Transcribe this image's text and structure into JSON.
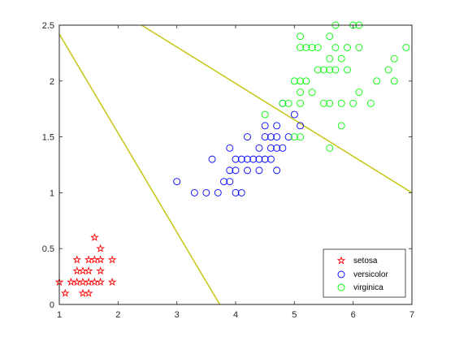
{
  "chart_data": {
    "type": "scatter",
    "title": "",
    "xlabel": "",
    "ylabel": "",
    "xlim": [
      1,
      7
    ],
    "ylim": [
      0,
      2.5
    ],
    "xticks": [
      "1",
      "2",
      "3",
      "4",
      "5",
      "6",
      "7"
    ],
    "yticks": [
      "0",
      "0.5",
      "1",
      "1.5",
      "2",
      "2.5"
    ],
    "grid": false,
    "legend_position": "bottom-right",
    "series": [
      {
        "name": "setosa",
        "marker": "pentagram",
        "color": "#ff0000",
        "points": [
          [
            1.0,
            0.2
          ],
          [
            1.1,
            0.1
          ],
          [
            1.2,
            0.2
          ],
          [
            1.3,
            0.2
          ],
          [
            1.3,
            0.3
          ],
          [
            1.3,
            0.4
          ],
          [
            1.4,
            0.1
          ],
          [
            1.4,
            0.2
          ],
          [
            1.4,
            0.3
          ],
          [
            1.5,
            0.1
          ],
          [
            1.5,
            0.2
          ],
          [
            1.5,
            0.3
          ],
          [
            1.5,
            0.4
          ],
          [
            1.6,
            0.2
          ],
          [
            1.6,
            0.4
          ],
          [
            1.6,
            0.6
          ],
          [
            1.7,
            0.2
          ],
          [
            1.7,
            0.3
          ],
          [
            1.7,
            0.4
          ],
          [
            1.7,
            0.5
          ],
          [
            1.9,
            0.2
          ],
          [
            1.9,
            0.4
          ]
        ]
      },
      {
        "name": "versicolor",
        "marker": "circle",
        "color": "#0000ff",
        "points": [
          [
            3.0,
            1.1
          ],
          [
            3.3,
            1.0
          ],
          [
            3.5,
            1.0
          ],
          [
            3.6,
            1.3
          ],
          [
            3.7,
            1.0
          ],
          [
            3.8,
            1.1
          ],
          [
            3.9,
            1.1
          ],
          [
            3.9,
            1.2
          ],
          [
            3.9,
            1.4
          ],
          [
            4.0,
            1.0
          ],
          [
            4.0,
            1.2
          ],
          [
            4.0,
            1.3
          ],
          [
            4.1,
            1.0
          ],
          [
            4.1,
            1.3
          ],
          [
            4.2,
            1.2
          ],
          [
            4.2,
            1.3
          ],
          [
            4.2,
            1.5
          ],
          [
            4.3,
            1.3
          ],
          [
            4.4,
            1.2
          ],
          [
            4.4,
            1.3
          ],
          [
            4.4,
            1.4
          ],
          [
            4.5,
            1.3
          ],
          [
            4.5,
            1.5
          ],
          [
            4.5,
            1.6
          ],
          [
            4.6,
            1.3
          ],
          [
            4.6,
            1.4
          ],
          [
            4.6,
            1.5
          ],
          [
            4.7,
            1.2
          ],
          [
            4.7,
            1.4
          ],
          [
            4.7,
            1.5
          ],
          [
            4.7,
            1.6
          ],
          [
            4.8,
            1.4
          ],
          [
            4.8,
            1.8
          ],
          [
            4.9,
            1.5
          ],
          [
            5.0,
            1.7
          ],
          [
            5.1,
            1.6
          ]
        ]
      },
      {
        "name": "virginica",
        "marker": "circle",
        "color": "#00ff00",
        "points": [
          [
            4.5,
            1.7
          ],
          [
            4.8,
            1.8
          ],
          [
            4.9,
            1.8
          ],
          [
            5.0,
            1.5
          ],
          [
            5.0,
            2.0
          ],
          [
            5.1,
            1.5
          ],
          [
            5.1,
            1.8
          ],
          [
            5.1,
            1.9
          ],
          [
            5.1,
            2.0
          ],
          [
            5.1,
            2.3
          ],
          [
            5.1,
            2.4
          ],
          [
            5.2,
            2.0
          ],
          [
            5.2,
            2.3
          ],
          [
            5.3,
            1.9
          ],
          [
            5.3,
            2.3
          ],
          [
            5.4,
            2.1
          ],
          [
            5.4,
            2.3
          ],
          [
            5.5,
            1.8
          ],
          [
            5.5,
            2.1
          ],
          [
            5.6,
            1.4
          ],
          [
            5.6,
            1.8
          ],
          [
            5.6,
            2.1
          ],
          [
            5.6,
            2.2
          ],
          [
            5.6,
            2.4
          ],
          [
            5.7,
            2.1
          ],
          [
            5.7,
            2.3
          ],
          [
            5.7,
            2.5
          ],
          [
            5.8,
            1.6
          ],
          [
            5.8,
            1.8
          ],
          [
            5.8,
            2.2
          ],
          [
            5.9,
            2.1
          ],
          [
            5.9,
            2.3
          ],
          [
            6.0,
            1.8
          ],
          [
            6.0,
            2.5
          ],
          [
            6.1,
            1.9
          ],
          [
            6.1,
            2.3
          ],
          [
            6.1,
            2.5
          ],
          [
            6.3,
            1.8
          ],
          [
            6.4,
            2.0
          ],
          [
            6.6,
            2.1
          ],
          [
            6.7,
            2.0
          ],
          [
            6.7,
            2.2
          ],
          [
            6.9,
            2.3
          ]
        ]
      }
    ],
    "lines": [
      {
        "color": "#c8c81e",
        "points": [
          [
            1.0,
            2.42
          ],
          [
            3.73,
            0.0
          ]
        ]
      },
      {
        "color": "#c8c81e",
        "points": [
          [
            2.4,
            2.5
          ],
          [
            7.0,
            1.0
          ]
        ]
      }
    ]
  }
}
